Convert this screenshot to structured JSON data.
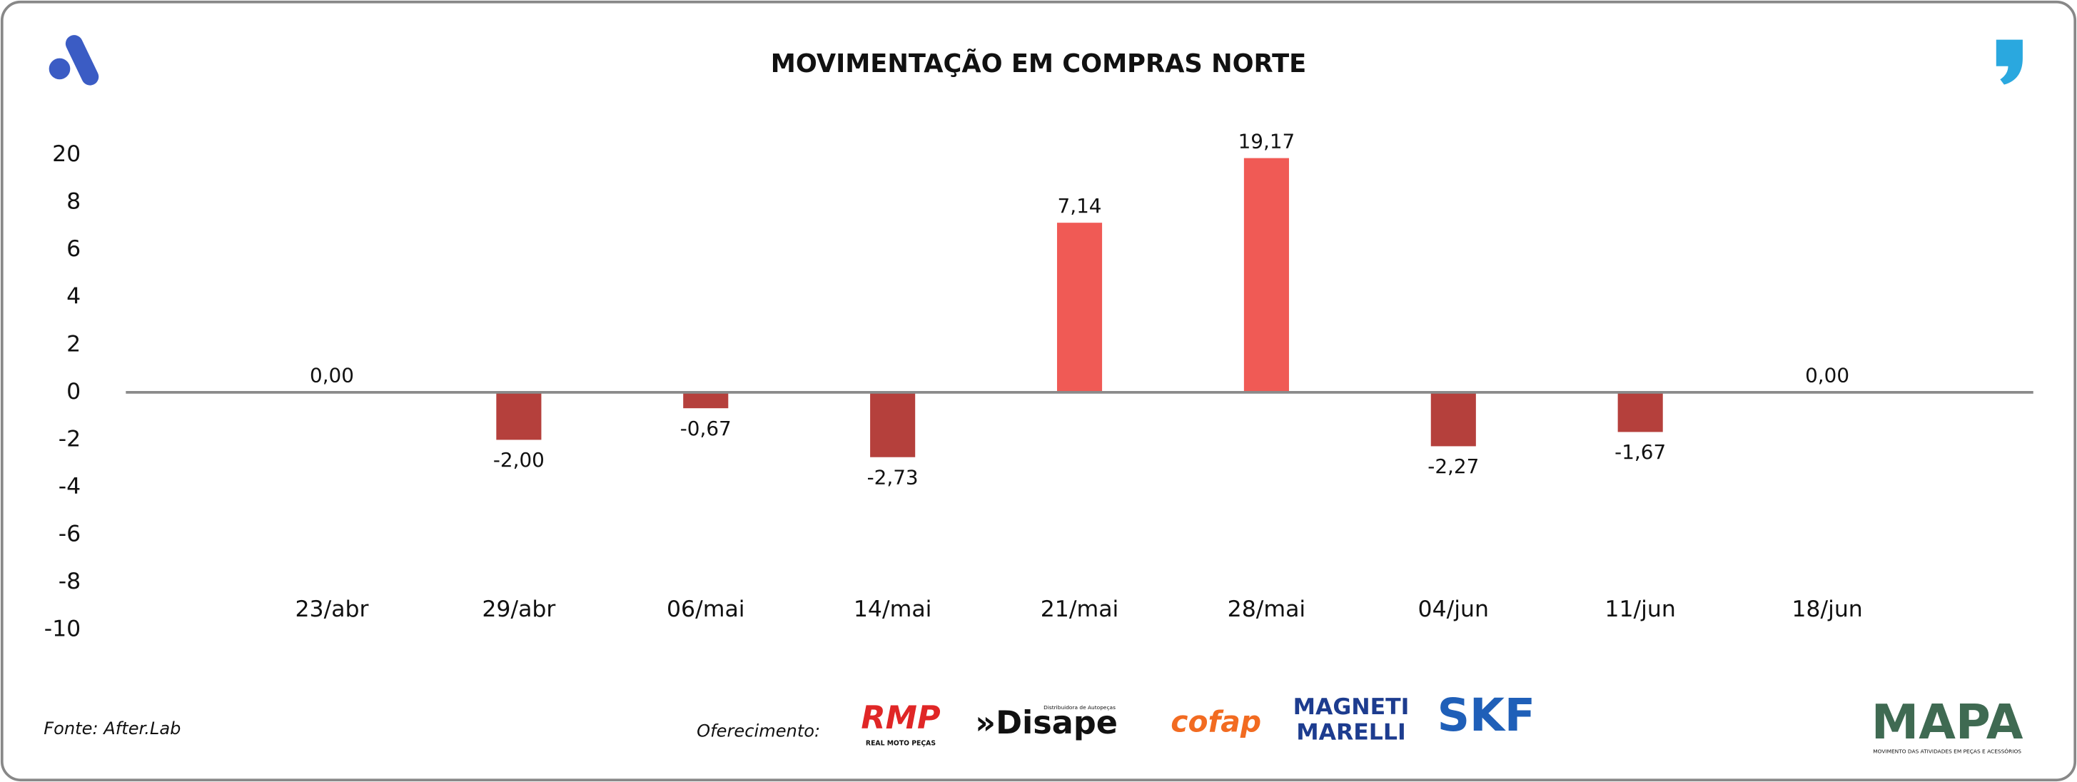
{
  "chart_data": {
    "type": "bar",
    "title": "MOVIMENTAÇÃO EM COMPRAS NORTE",
    "categories": [
      "23/abr",
      "29/abr",
      "06/mai",
      "14/mai",
      "21/mai",
      "28/mai",
      "04/jun",
      "11/jun",
      "18/jun"
    ],
    "values": [
      0,
      -2,
      -0.67,
      -2.73,
      7.14,
      19.17,
      -2.27,
      -1.67,
      0
    ],
    "value_labels": [
      "0,00",
      "-2,00",
      "-0,67",
      "-2,73",
      "7,14",
      "19,17",
      "-2,27",
      "-1,67",
      "0,00"
    ],
    "positive_color": "#f05a55",
    "negative_color": "#b5403c",
    "ylim": [
      -10,
      20
    ],
    "yticks": [
      -10,
      -8,
      -6,
      -4,
      -2,
      0,
      2,
      4,
      6,
      8,
      20
    ],
    "grid": false
  },
  "footer": {
    "source": "Fonte: After.Lab",
    "sponsor_label": "Oferecimento:",
    "sponsors": [
      "RMP",
      "REAL MOTO PEÇAS",
      "»Disape",
      "Distribuidora de Autopeças",
      "cofap",
      "MAGNETI",
      "MARELLI",
      "SKF"
    ],
    "brand": "MAPA",
    "brand_subtitle": "MOVIMENTO DAS ATIVIDADES EM PEÇAS E ACESSÓRIOS"
  }
}
